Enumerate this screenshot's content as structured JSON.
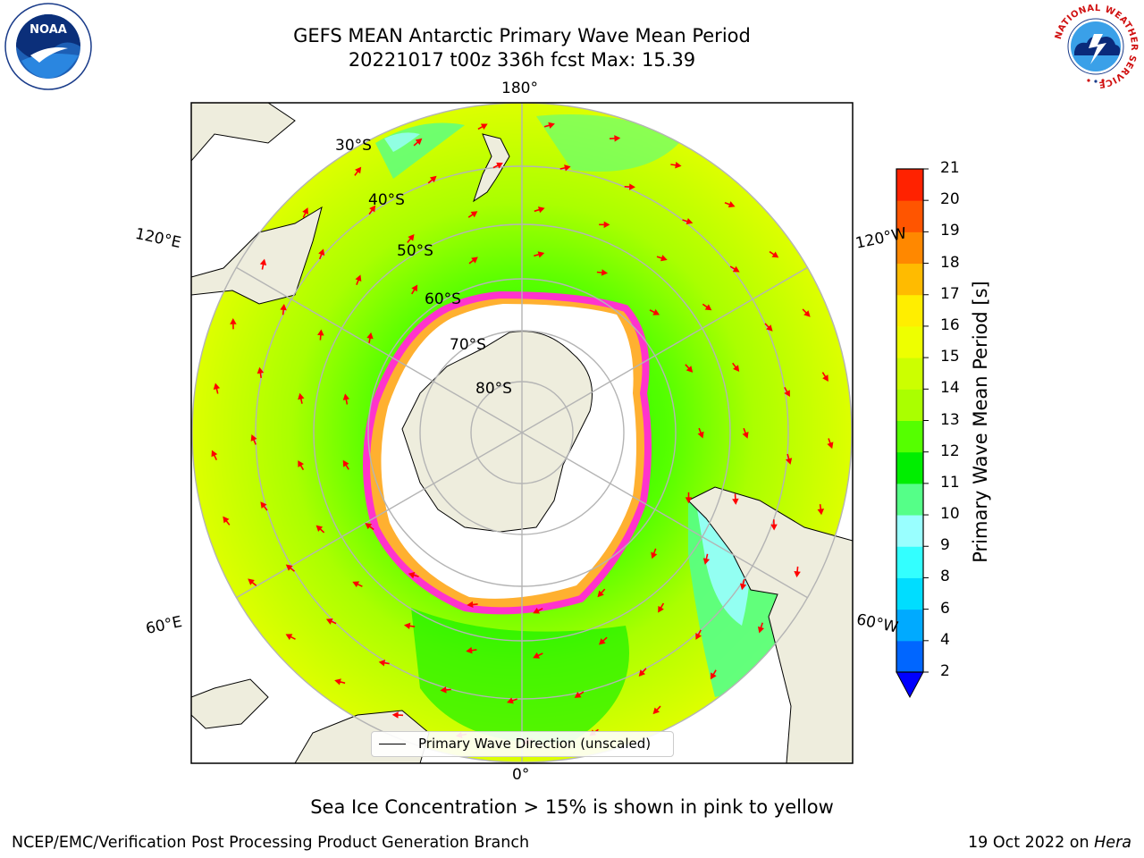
{
  "header": {
    "title_line1": "GEFS MEAN Antarctic Primary Wave Mean Period",
    "title_line2": "20221017 t00z 336h fcst   Max: 15.39"
  },
  "logos": {
    "left": "NOAA",
    "right_ring_text": "NATIONAL WEATHER SERVICE"
  },
  "map": {
    "longitude_labels": {
      "top": "180°",
      "bottom": "0°",
      "upper_left": "120°E",
      "lower_left": "60°E",
      "upper_right": "120°W",
      "lower_right": "60°W"
    },
    "latitude_labels": [
      "30°S",
      "40°S",
      "50°S",
      "60°S",
      "70°S",
      "80°S"
    ],
    "legend_label": "Primary Wave Direction (unscaled)",
    "colors": {
      "land": "#eeeddd",
      "ice_edge_pink": "#ff33cc",
      "ice_edge_orange": "#ffb030",
      "arrow": "#ff0000",
      "graticule": "#b4b4b4"
    }
  },
  "colorbar": {
    "label": "Primary Wave Mean Period [s]",
    "ticks": [
      "2",
      "4",
      "6",
      "8",
      "9",
      "10",
      "11",
      "12",
      "13",
      "14",
      "15",
      "16",
      "17",
      "18",
      "19",
      "20",
      "21"
    ],
    "colors": [
      "#0066ff",
      "#00aaff",
      "#00ddff",
      "#33ffff",
      "#99ffff",
      "#55ff88",
      "#00ee00",
      "#55ff00",
      "#aaff00",
      "#ccff00",
      "#eeff00",
      "#ffee00",
      "#ffbb00",
      "#ff8800",
      "#ff5500",
      "#ff2200"
    ],
    "extend_color": "#0000ff"
  },
  "caption": "Sea Ice Concentration > 15% is shown in pink to yellow",
  "footer": {
    "left": "NCEP/EMC/Verification Post Processing Product Generation Branch",
    "date": "19 Oct 2022 on ",
    "machine": "Hera"
  }
}
